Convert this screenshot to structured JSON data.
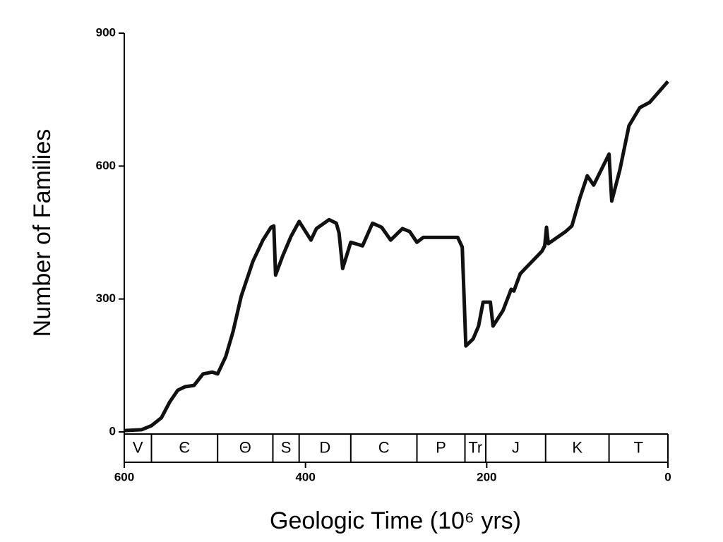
{
  "chart_data": {
    "type": "line",
    "x_label": "Geologic Time   (10⁶ yrs)",
    "y_label": "Number of  Families",
    "xlim": [
      600,
      0
    ],
    "ylim": [
      0,
      900
    ],
    "xticks": [
      600,
      400,
      200,
      0
    ],
    "yticks": [
      0,
      300,
      600,
      900
    ],
    "periods": {
      "labels": [
        "V",
        "Є",
        "Θ",
        "S",
        "D",
        "C",
        "P",
        "Tr",
        "J",
        "K",
        "T"
      ],
      "boundaries": [
        600,
        570,
        497,
        436,
        407,
        350,
        277,
        224,
        201,
        135,
        65,
        0
      ]
    },
    "series": [
      {
        "color": "#111111",
        "x": [
          600,
          581,
          570,
          559,
          550,
          541,
          533,
          523,
          513,
          503,
          497,
          488,
          480,
          471,
          458,
          447,
          438,
          435,
          433,
          425,
          416,
          407,
          394,
          388,
          374,
          366,
          363,
          359,
          350,
          337,
          326,
          316,
          306,
          293,
          285,
          277,
          270,
          232,
          227,
          223,
          215,
          209,
          204,
          196,
          193,
          182,
          173,
          170,
          163,
          139,
          136,
          134,
          132,
          113,
          106,
          97,
          89,
          82,
          65,
          62,
          53,
          43,
          31,
          20,
          0
        ],
        "values": [
          3,
          5,
          14,
          32,
          67,
          94,
          102,
          105,
          131,
          135,
          131,
          170,
          226,
          306,
          385,
          433,
          462,
          465,
          354,
          398,
          441,
          475,
          433,
          459,
          479,
          471,
          449,
          369,
          428,
          420,
          471,
          462,
          433,
          459,
          452,
          428,
          439,
          439,
          417,
          194,
          210,
          239,
          293,
          293,
          239,
          274,
          322,
          318,
          357,
          408,
          420,
          462,
          425,
          452,
          465,
          529,
          578,
          557,
          627,
          521,
          592,
          691,
          732,
          744,
          791
        ]
      }
    ]
  }
}
